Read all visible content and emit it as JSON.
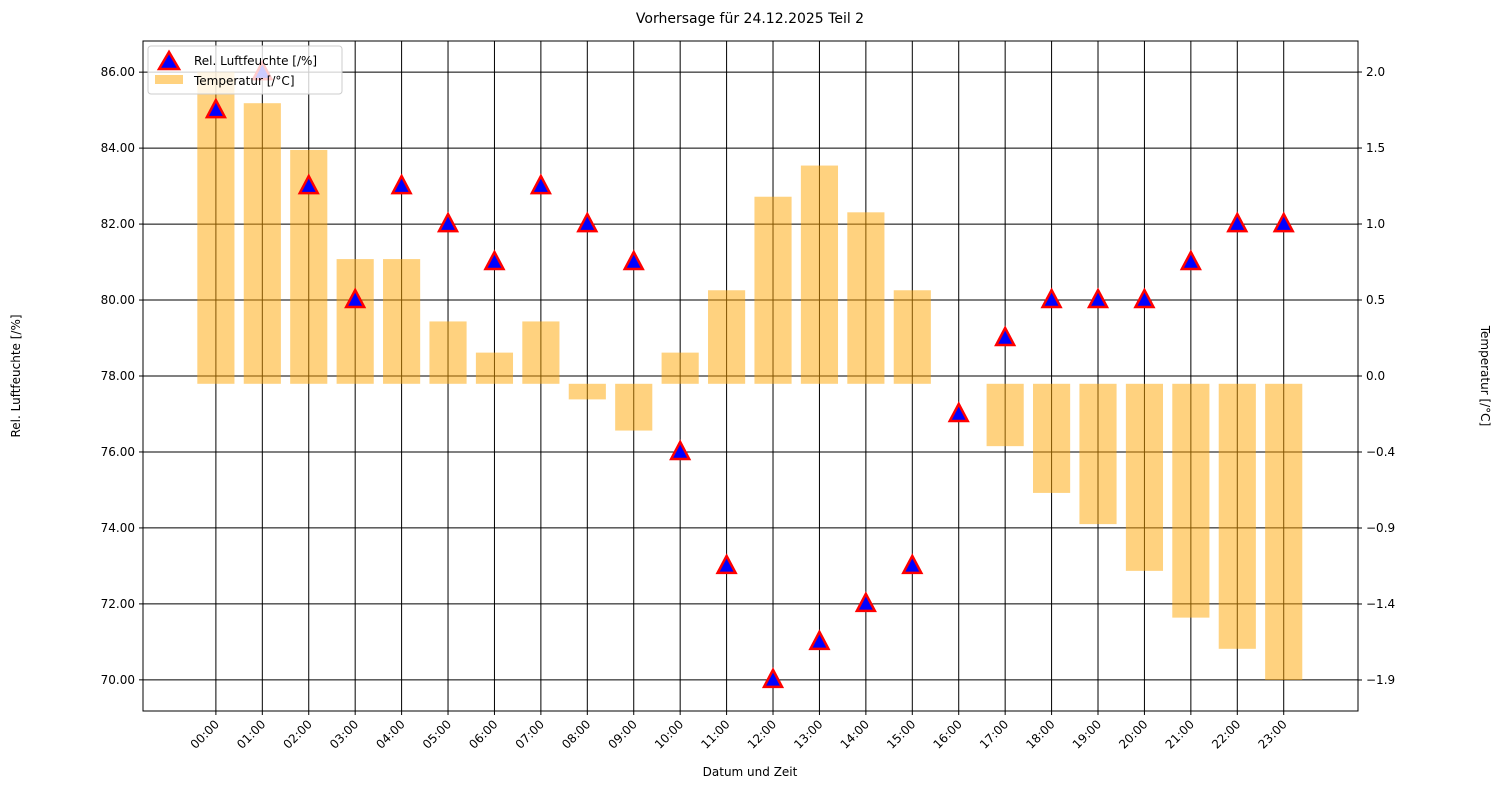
{
  "chart_data": {
    "type": "bar+scatter",
    "title": "Vorhersage für 24.12.2025 Teil 2",
    "xlabel": "Datum und Zeit",
    "ylabel_left": "Rel. Luftfeuchte [/%]",
    "ylabel_right": "Temperatur [/°C]",
    "categories": [
      "00:00",
      "01:00",
      "02:00",
      "03:00",
      "04:00",
      "05:00",
      "06:00",
      "07:00",
      "08:00",
      "09:00",
      "10:00",
      "11:00",
      "12:00",
      "13:00",
      "14:00",
      "15:00",
      "16:00",
      "17:00",
      "18:00",
      "19:00",
      "20:00",
      "21:00",
      "22:00",
      "23:00"
    ],
    "series": [
      {
        "name": "Rel. Luftfeuchte [/%]",
        "kind": "scatter",
        "axis": "left",
        "marker": "triangle-up",
        "color": "#0000ff",
        "edge_color": "#ff0000",
        "values": [
          85,
          86,
          83,
          80,
          83,
          82,
          81,
          83,
          82,
          81,
          76,
          73,
          70,
          71,
          72,
          73,
          77,
          79,
          80,
          80,
          80,
          81,
          82,
          82
        ]
      },
      {
        "name": "Temperatur [/°C]",
        "kind": "bar",
        "axis": "right",
        "color": "#ffa500",
        "opacity": 0.5,
        "values": [
          2.0,
          1.8,
          1.5,
          0.8,
          0.8,
          0.4,
          0.2,
          0.4,
          -0.1,
          -0.3,
          0.2,
          0.6,
          1.2,
          1.4,
          1.1,
          0.6,
          0.0,
          -0.4,
          -0.7,
          -0.9,
          -1.2,
          -1.5,
          -1.7,
          -1.9
        ]
      }
    ],
    "left_axis": {
      "ylim": [
        69.18,
        86.82
      ],
      "ticks": [
        86,
        84,
        82,
        80,
        78,
        76,
        74,
        72,
        70
      ],
      "tick_labels": [
        "86.00",
        "84.00",
        "82.00",
        "80.00",
        "78.00",
        "76.00",
        "74.00",
        "72.00",
        "70.00"
      ]
    },
    "right_axis": {
      "ylim": [
        -2.099,
        2.199
      ],
      "ticks": [
        2.0,
        1.5125,
        1.025,
        0.5375,
        0.05,
        -0.4375,
        -0.925,
        -1.4125,
        -1.9
      ],
      "tick_labels": [
        "2.0",
        "1.5",
        "1.0",
        "0.5",
        "0.0",
        "−0.4",
        "−0.9",
        "−1.4",
        "−1.9"
      ]
    },
    "xlim": [
      -1.57,
      24.6
    ],
    "bar_width": 0.8,
    "grid": true,
    "legend": {
      "position": "top-left",
      "entries": [
        "Rel. Luftfeuchte [/%]",
        "Temperatur [/°C]"
      ]
    }
  }
}
